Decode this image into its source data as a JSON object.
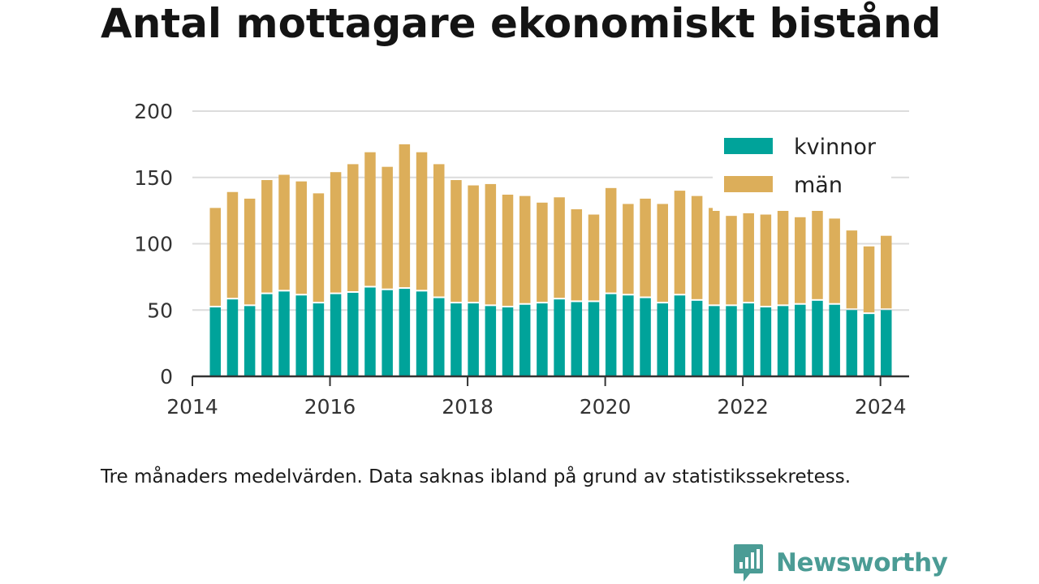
{
  "title": "Antal mottagare ekonomiskt bistånd",
  "note": "Tre månaders medelvärden. Data saknas ibland på grund av statistikssekretess.",
  "brand": {
    "name": "Newsworthy",
    "icon": "newsworthy-logo-icon",
    "color": "#4b9c95"
  },
  "chart_data": {
    "type": "bar",
    "stacked": true,
    "title": "",
    "xlabel": "",
    "ylabel": "",
    "ylim": [
      0,
      200
    ],
    "yticks": [
      0,
      50,
      100,
      150,
      200
    ],
    "xlim": [
      "2014-01-01",
      "2024-06-01"
    ],
    "xticks": [
      "2014",
      "2016",
      "2018",
      "2020",
      "2022",
      "2024"
    ],
    "grid": true,
    "legend": "top-right",
    "x": [
      "2014-05",
      "2014-08",
      "2014-11",
      "2015-02",
      "2015-05",
      "2015-08",
      "2015-11",
      "2016-02",
      "2016-05",
      "2016-08",
      "2016-11",
      "2017-02",
      "2017-05",
      "2017-08",
      "2017-11",
      "2018-02",
      "2018-05",
      "2018-08",
      "2018-11",
      "2019-02",
      "2019-05",
      "2019-08",
      "2019-11",
      "2020-02",
      "2020-05",
      "2020-08",
      "2020-11",
      "2021-02",
      "2021-05",
      "2021-08",
      "2021-11",
      "2022-02",
      "2022-05",
      "2022-08",
      "2022-11",
      "2023-02",
      "2023-05",
      "2023-08",
      "2023-11",
      "2024-02"
    ],
    "series": [
      {
        "name": "kvinnor",
        "color": "#00a39a",
        "values": [
          52,
          58,
          53,
          62,
          64,
          61,
          55,
          62,
          63,
          67,
          65,
          66,
          64,
          59,
          55,
          55,
          53,
          52,
          54,
          55,
          58,
          56,
          56,
          62,
          61,
          59,
          55,
          61,
          57,
          53,
          53,
          55,
          52,
          53,
          54,
          57,
          54,
          50,
          47,
          50
        ]
      },
      {
        "name": "män",
        "color": "#dcae5a",
        "values": [
          75,
          81,
          81,
          86,
          88,
          86,
          83,
          92,
          97,
          102,
          93,
          109,
          105,
          101,
          93,
          89,
          92,
          85,
          82,
          76,
          77,
          70,
          66,
          80,
          69,
          75,
          75,
          79,
          79,
          74,
          68,
          68,
          70,
          72,
          66,
          68,
          65,
          60,
          51,
          56
        ]
      }
    ]
  }
}
